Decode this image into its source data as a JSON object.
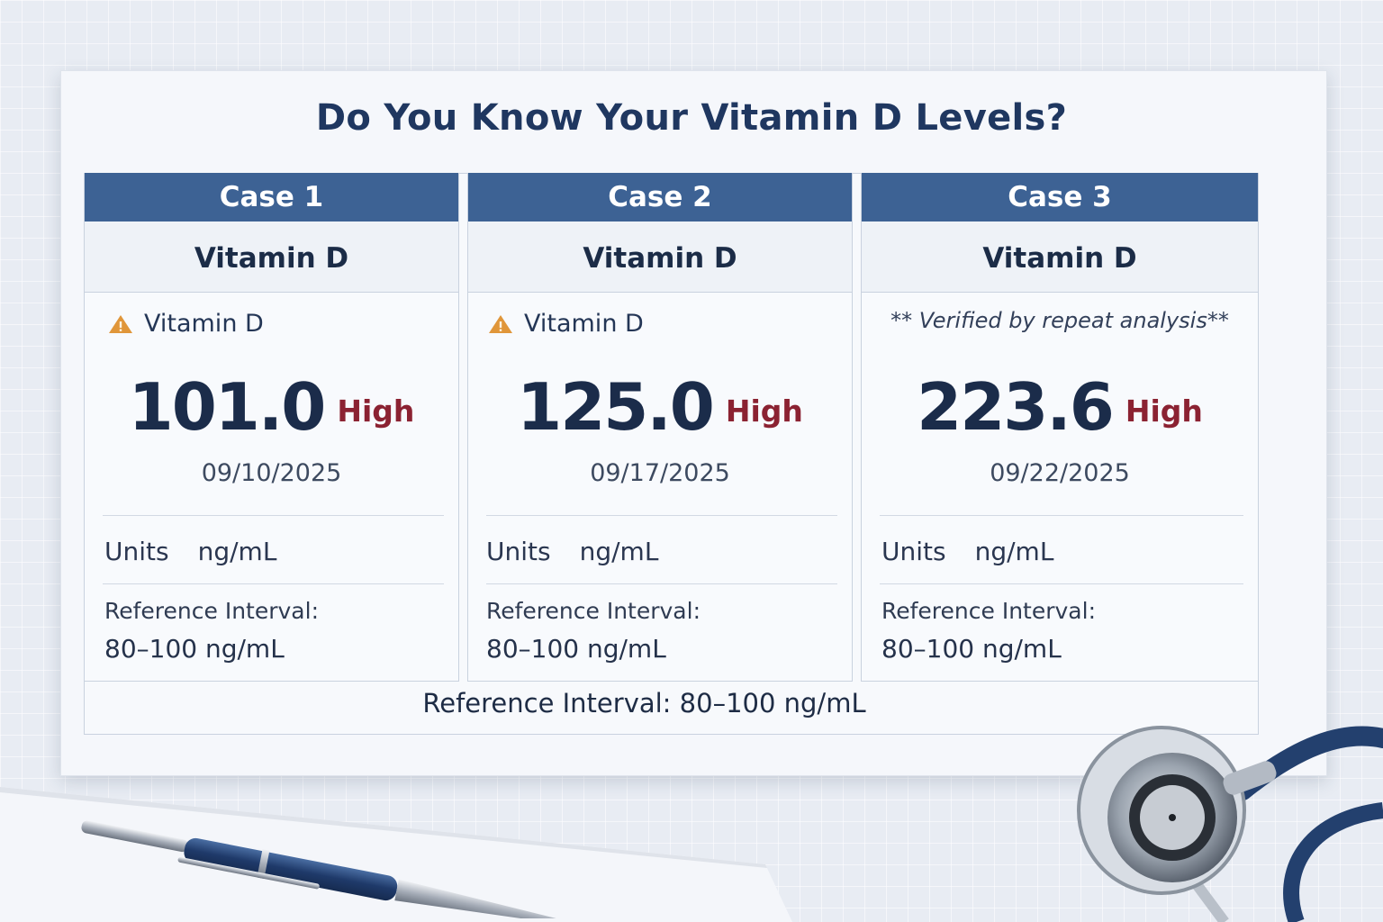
{
  "title": "Do You Know Your Vitamin D Levels?",
  "cases": [
    {
      "header": "Case 1",
      "test_name": "Vitamin D",
      "note_icon": "warning-icon",
      "note": "Vitamin D",
      "value": "101.0",
      "flag": "High",
      "date": "09/10/2025",
      "units_label": "Units",
      "units_value": "ng/mL",
      "ref_label": "Reference Interval:",
      "ref_value": "80–100 ng/mL"
    },
    {
      "header": "Case 2",
      "test_name": "Vitamin D",
      "note_icon": "warning-icon",
      "note": "Vitamin D",
      "value": "125.0",
      "flag": "High",
      "date": "09/17/2025",
      "units_label": "Units",
      "units_value": "ng/mL",
      "ref_label": "Reference Interval:",
      "ref_value": "80–100 ng/mL"
    },
    {
      "header": "Case 3",
      "test_name": "Vitamin D",
      "note": "** Verified by repeat analysis**",
      "value": "223.6",
      "flag": "High",
      "date": "09/22/2025",
      "units_label": "Units",
      "units_value": "ng/mL",
      "ref_label": "Reference Interval:",
      "ref_value": "80–100 ng/mL"
    }
  ],
  "footer_reference": "Reference Interval: 80–100 ng/mL",
  "colors": {
    "header_blue": "#3d6294",
    "title_navy": "#1f3760",
    "high_red": "#8b2232",
    "warning_orange": "#e0963a"
  },
  "decorations": [
    "pen",
    "stethoscope"
  ]
}
